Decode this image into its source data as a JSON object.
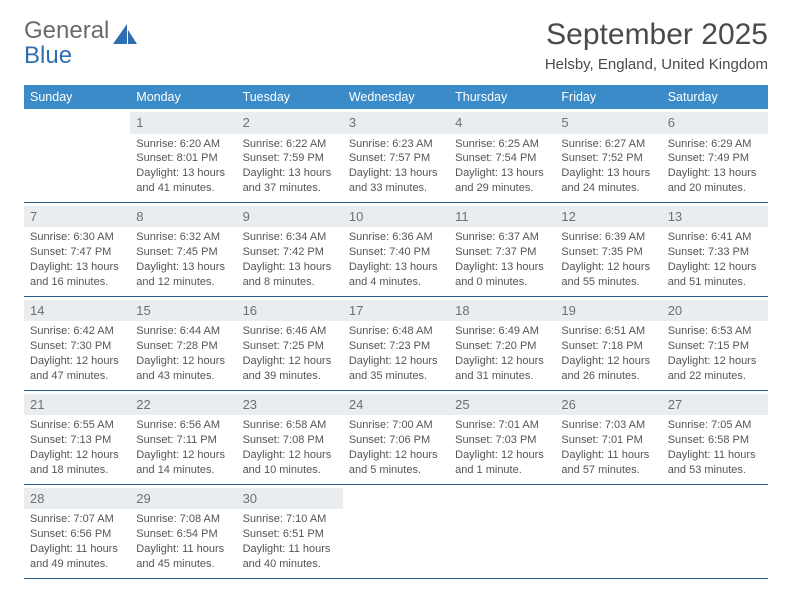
{
  "brand": {
    "line1": "General",
    "line2": "Blue"
  },
  "title": "September 2025",
  "location": "Helsby, England, United Kingdom",
  "colors": {
    "header_bg": "#3b8bc8",
    "header_text": "#ffffff",
    "daynum_bg": "#e9edf0",
    "daynum_text": "#707070",
    "week_border": "#2d5b88",
    "body_text": "#555555",
    "brand_gray": "#6a6a6a",
    "brand_blue": "#2f6fb0"
  },
  "weekdays": [
    "Sunday",
    "Monday",
    "Tuesday",
    "Wednesday",
    "Thursday",
    "Friday",
    "Saturday"
  ],
  "weeks": [
    [
      {
        "n": "",
        "sunrise": "",
        "sunset": "",
        "daylight": ""
      },
      {
        "n": "1",
        "sunrise": "Sunrise: 6:20 AM",
        "sunset": "Sunset: 8:01 PM",
        "daylight": "Daylight: 13 hours and 41 minutes."
      },
      {
        "n": "2",
        "sunrise": "Sunrise: 6:22 AM",
        "sunset": "Sunset: 7:59 PM",
        "daylight": "Daylight: 13 hours and 37 minutes."
      },
      {
        "n": "3",
        "sunrise": "Sunrise: 6:23 AM",
        "sunset": "Sunset: 7:57 PM",
        "daylight": "Daylight: 13 hours and 33 minutes."
      },
      {
        "n": "4",
        "sunrise": "Sunrise: 6:25 AM",
        "sunset": "Sunset: 7:54 PM",
        "daylight": "Daylight: 13 hours and 29 minutes."
      },
      {
        "n": "5",
        "sunrise": "Sunrise: 6:27 AM",
        "sunset": "Sunset: 7:52 PM",
        "daylight": "Daylight: 13 hours and 24 minutes."
      },
      {
        "n": "6",
        "sunrise": "Sunrise: 6:29 AM",
        "sunset": "Sunset: 7:49 PM",
        "daylight": "Daylight: 13 hours and 20 minutes."
      }
    ],
    [
      {
        "n": "7",
        "sunrise": "Sunrise: 6:30 AM",
        "sunset": "Sunset: 7:47 PM",
        "daylight": "Daylight: 13 hours and 16 minutes."
      },
      {
        "n": "8",
        "sunrise": "Sunrise: 6:32 AM",
        "sunset": "Sunset: 7:45 PM",
        "daylight": "Daylight: 13 hours and 12 minutes."
      },
      {
        "n": "9",
        "sunrise": "Sunrise: 6:34 AM",
        "sunset": "Sunset: 7:42 PM",
        "daylight": "Daylight: 13 hours and 8 minutes."
      },
      {
        "n": "10",
        "sunrise": "Sunrise: 6:36 AM",
        "sunset": "Sunset: 7:40 PM",
        "daylight": "Daylight: 13 hours and 4 minutes."
      },
      {
        "n": "11",
        "sunrise": "Sunrise: 6:37 AM",
        "sunset": "Sunset: 7:37 PM",
        "daylight": "Daylight: 13 hours and 0 minutes."
      },
      {
        "n": "12",
        "sunrise": "Sunrise: 6:39 AM",
        "sunset": "Sunset: 7:35 PM",
        "daylight": "Daylight: 12 hours and 55 minutes."
      },
      {
        "n": "13",
        "sunrise": "Sunrise: 6:41 AM",
        "sunset": "Sunset: 7:33 PM",
        "daylight": "Daylight: 12 hours and 51 minutes."
      }
    ],
    [
      {
        "n": "14",
        "sunrise": "Sunrise: 6:42 AM",
        "sunset": "Sunset: 7:30 PM",
        "daylight": "Daylight: 12 hours and 47 minutes."
      },
      {
        "n": "15",
        "sunrise": "Sunrise: 6:44 AM",
        "sunset": "Sunset: 7:28 PM",
        "daylight": "Daylight: 12 hours and 43 minutes."
      },
      {
        "n": "16",
        "sunrise": "Sunrise: 6:46 AM",
        "sunset": "Sunset: 7:25 PM",
        "daylight": "Daylight: 12 hours and 39 minutes."
      },
      {
        "n": "17",
        "sunrise": "Sunrise: 6:48 AM",
        "sunset": "Sunset: 7:23 PM",
        "daylight": "Daylight: 12 hours and 35 minutes."
      },
      {
        "n": "18",
        "sunrise": "Sunrise: 6:49 AM",
        "sunset": "Sunset: 7:20 PM",
        "daylight": "Daylight: 12 hours and 31 minutes."
      },
      {
        "n": "19",
        "sunrise": "Sunrise: 6:51 AM",
        "sunset": "Sunset: 7:18 PM",
        "daylight": "Daylight: 12 hours and 26 minutes."
      },
      {
        "n": "20",
        "sunrise": "Sunrise: 6:53 AM",
        "sunset": "Sunset: 7:15 PM",
        "daylight": "Daylight: 12 hours and 22 minutes."
      }
    ],
    [
      {
        "n": "21",
        "sunrise": "Sunrise: 6:55 AM",
        "sunset": "Sunset: 7:13 PM",
        "daylight": "Daylight: 12 hours and 18 minutes."
      },
      {
        "n": "22",
        "sunrise": "Sunrise: 6:56 AM",
        "sunset": "Sunset: 7:11 PM",
        "daylight": "Daylight: 12 hours and 14 minutes."
      },
      {
        "n": "23",
        "sunrise": "Sunrise: 6:58 AM",
        "sunset": "Sunset: 7:08 PM",
        "daylight": "Daylight: 12 hours and 10 minutes."
      },
      {
        "n": "24",
        "sunrise": "Sunrise: 7:00 AM",
        "sunset": "Sunset: 7:06 PM",
        "daylight": "Daylight: 12 hours and 5 minutes."
      },
      {
        "n": "25",
        "sunrise": "Sunrise: 7:01 AM",
        "sunset": "Sunset: 7:03 PM",
        "daylight": "Daylight: 12 hours and 1 minute."
      },
      {
        "n": "26",
        "sunrise": "Sunrise: 7:03 AM",
        "sunset": "Sunset: 7:01 PM",
        "daylight": "Daylight: 11 hours and 57 minutes."
      },
      {
        "n": "27",
        "sunrise": "Sunrise: 7:05 AM",
        "sunset": "Sunset: 6:58 PM",
        "daylight": "Daylight: 11 hours and 53 minutes."
      }
    ],
    [
      {
        "n": "28",
        "sunrise": "Sunrise: 7:07 AM",
        "sunset": "Sunset: 6:56 PM",
        "daylight": "Daylight: 11 hours and 49 minutes."
      },
      {
        "n": "29",
        "sunrise": "Sunrise: 7:08 AM",
        "sunset": "Sunset: 6:54 PM",
        "daylight": "Daylight: 11 hours and 45 minutes."
      },
      {
        "n": "30",
        "sunrise": "Sunrise: 7:10 AM",
        "sunset": "Sunset: 6:51 PM",
        "daylight": "Daylight: 11 hours and 40 minutes."
      },
      {
        "n": "",
        "sunrise": "",
        "sunset": "",
        "daylight": ""
      },
      {
        "n": "",
        "sunrise": "",
        "sunset": "",
        "daylight": ""
      },
      {
        "n": "",
        "sunrise": "",
        "sunset": "",
        "daylight": ""
      },
      {
        "n": "",
        "sunrise": "",
        "sunset": "",
        "daylight": ""
      }
    ]
  ]
}
